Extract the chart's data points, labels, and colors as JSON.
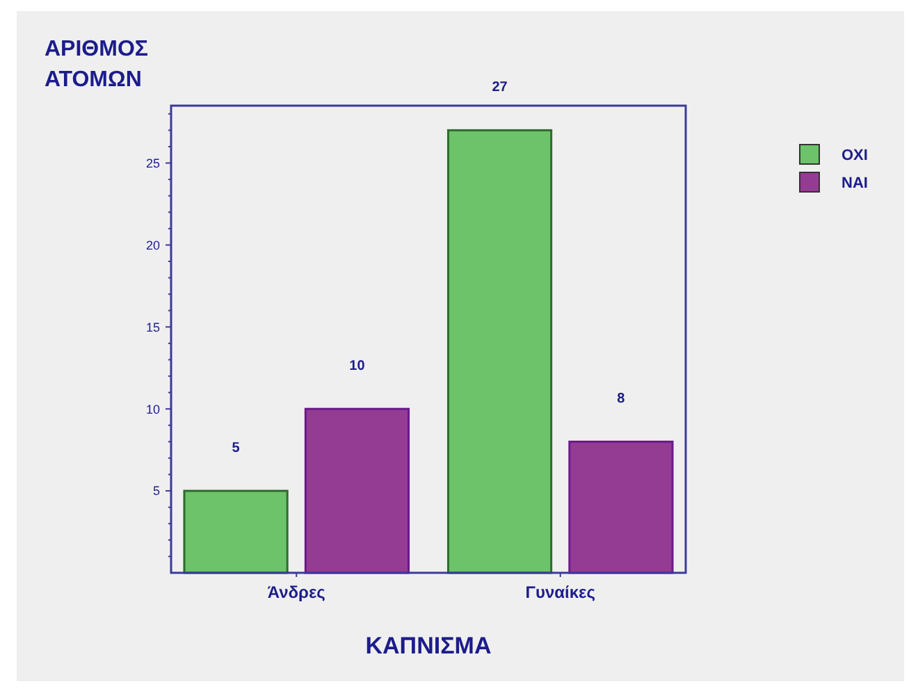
{
  "chart_data": {
    "type": "bar",
    "xlabel": "ΚΑΠΝΙΣΜΑ",
    "ylabel": "ΑΡΙΘΜΟΣ ΑΤΟΜΩΝ",
    "categories": [
      "Άνδρες",
      "Γυναίκες"
    ],
    "series": [
      {
        "name": "ΟΧΙ",
        "color": "#6cc36a",
        "values": [
          5,
          27
        ]
      },
      {
        "name": "ΝΑΙ",
        "color": "#943c94",
        "values": [
          10,
          8
        ]
      }
    ],
    "ylim": [
      0,
      28.5
    ],
    "yticks": [
      {
        "value": 1,
        "label": null
      },
      {
        "value": 2,
        "label": null
      },
      {
        "value": 3,
        "label": null
      },
      {
        "value": 4,
        "label": null
      },
      5,
      {
        "value": 6,
        "label": null
      },
      {
        "value": 7,
        "label": null
      },
      {
        "value": 8,
        "label": null
      },
      {
        "value": 9,
        "label": null
      },
      10,
      {
        "value": 11,
        "label": null
      },
      {
        "value": 12,
        "label": null
      },
      {
        "value": 13,
        "label": null
      },
      {
        "value": 14,
        "label": null
      },
      15,
      {
        "value": 16,
        "label": null
      },
      {
        "value": 17,
        "label": null
      },
      {
        "value": 18,
        "label": null
      },
      {
        "value": 19,
        "label": null
      },
      20,
      {
        "value": 21,
        "label": null
      },
      {
        "value": 22,
        "label": null
      },
      {
        "value": 23,
        "label": null
      },
      {
        "value": 24,
        "label": null
      },
      25,
      {
        "value": 26,
        "label": null
      },
      {
        "value": 27,
        "label": null
      },
      {
        "value": 28,
        "label": null
      }
    ],
    "grid": false,
    "legend": "right",
    "data_labels": true
  }
}
